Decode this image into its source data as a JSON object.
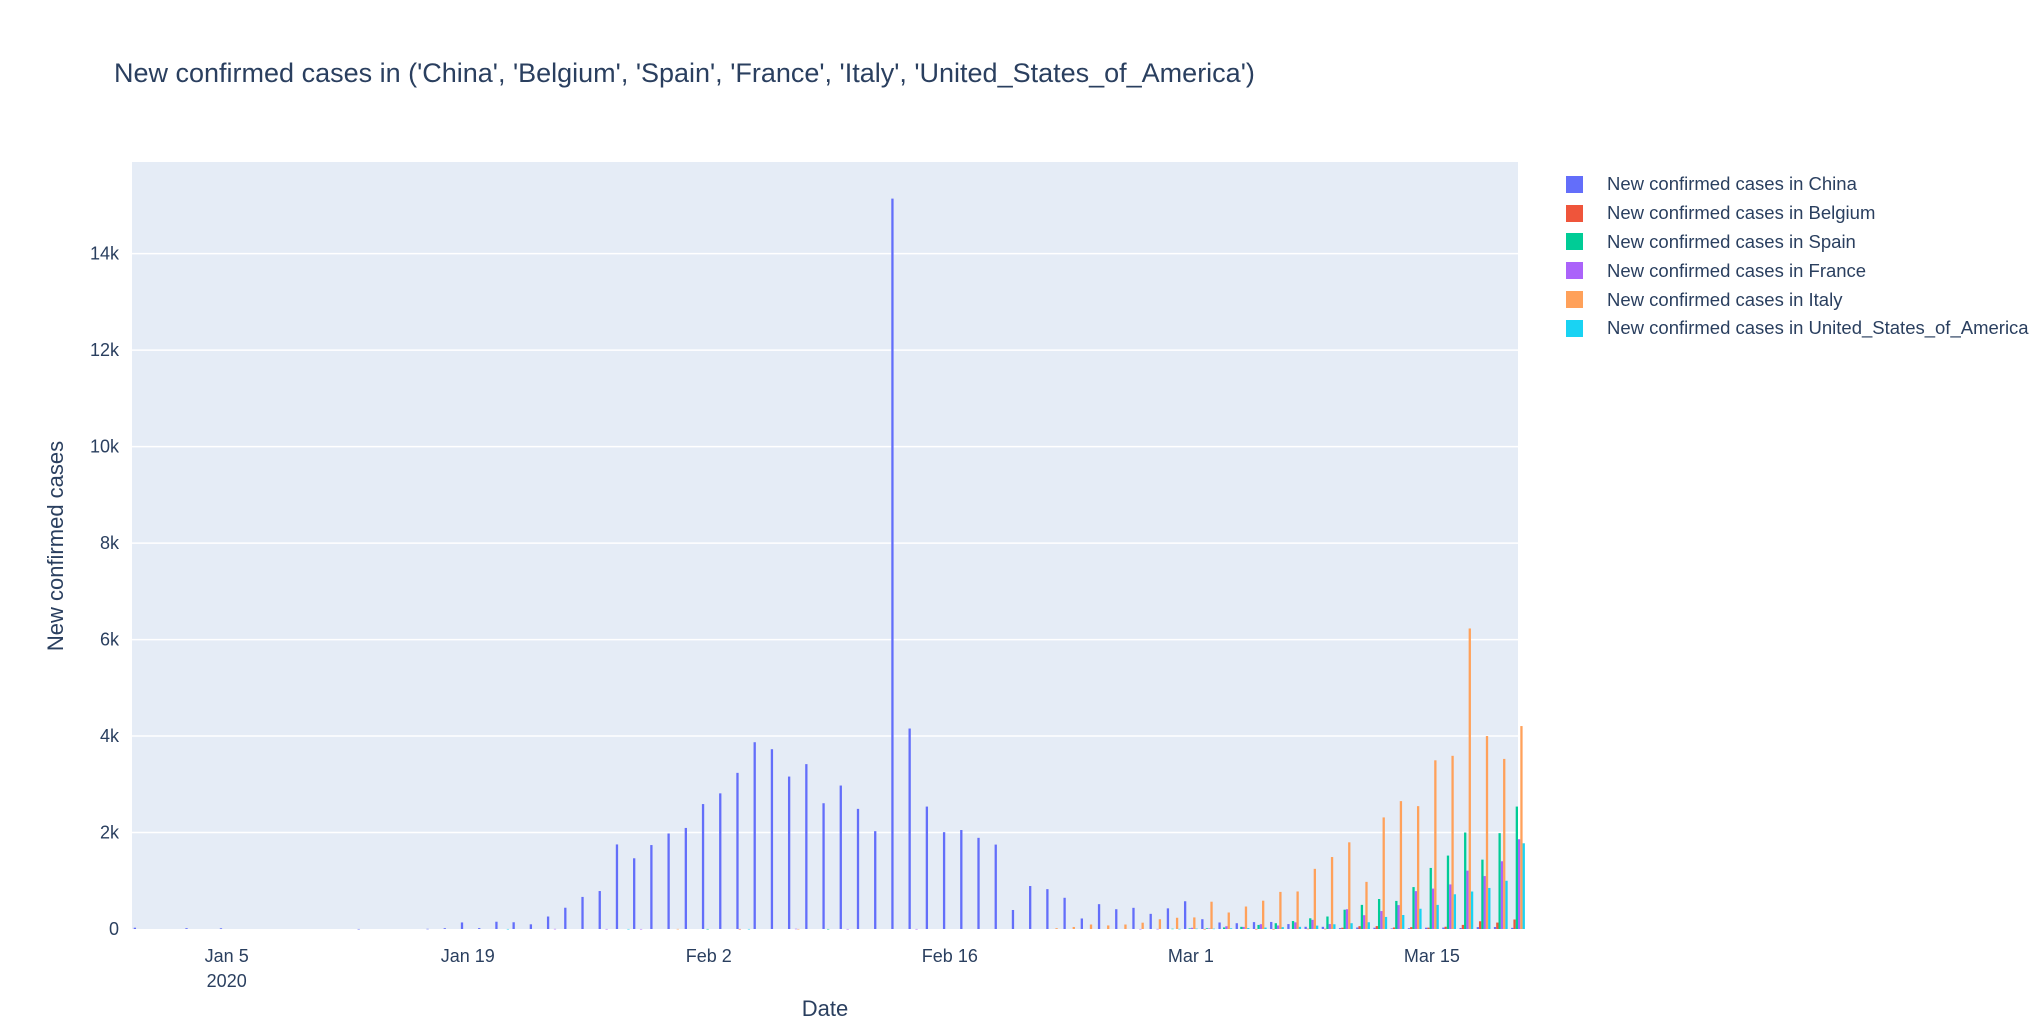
{
  "chart_data": {
    "type": "bar",
    "barmode": "group",
    "title": "New confirmed cases in ('China', 'Belgium', 'Spain', 'France', 'Italy', 'United_States_of_America')",
    "xlabel": "Date",
    "ylabel": "New confirmed cases",
    "x_start": "2019-12-31",
    "x_ticks": [
      {
        "date": "2020-01-05",
        "label": "Jan 5",
        "sublabel": "2020"
      },
      {
        "date": "2020-01-19",
        "label": "Jan 19"
      },
      {
        "date": "2020-02-02",
        "label": "Feb 2"
      },
      {
        "date": "2020-02-16",
        "label": "Feb 16"
      },
      {
        "date": "2020-03-01",
        "label": "Mar 1"
      },
      {
        "date": "2020-03-15",
        "label": "Mar 15"
      }
    ],
    "ylim": [
      0,
      15900
    ],
    "y_ticks": [
      {
        "value": 0,
        "label": "0"
      },
      {
        "value": 2000,
        "label": "2k"
      },
      {
        "value": 4000,
        "label": "4k"
      },
      {
        "value": 6000,
        "label": "6k"
      },
      {
        "value": 8000,
        "label": "8k"
      },
      {
        "value": 10000,
        "label": "10k"
      },
      {
        "value": 12000,
        "label": "12k"
      },
      {
        "value": 14000,
        "label": "14k"
      }
    ],
    "grid": true,
    "legend_position": "top-right",
    "series": [
      {
        "name": "New confirmed cases in China",
        "color": "#636efa",
        "values": [
          27,
          0,
          0,
          17,
          0,
          15,
          0,
          0,
          0,
          0,
          0,
          0,
          0,
          1,
          0,
          0,
          0,
          4,
          17,
          136,
          19,
          151,
          140,
          97,
          259,
          441,
          665,
          787,
          1753,
          1466,
          1740,
          1980,
          2095,
          2590,
          2812,
          3237,
          3872,
          3727,
          3160,
          3418,
          2607,
          2974,
          2490,
          2028,
          15141,
          4156,
          2538,
          2007,
          2052,
          1890,
          1750,
          394,
          891,
          826,
          647,
          218,
          515,
          410,
          439,
          314,
          428,
          575,
          203,
          135,
          120,
          143,
          146,
          102,
          46,
          45,
          20,
          31,
          26,
          11,
          18,
          27,
          29,
          21,
          39,
          41,
          24
        ]
      },
      {
        "name": "New confirmed cases in Belgium",
        "color": "#ef553b",
        "values": [
          0,
          0,
          0,
          0,
          0,
          0,
          0,
          0,
          0,
          0,
          0,
          0,
          0,
          0,
          0,
          0,
          0,
          0,
          0,
          0,
          0,
          0,
          0,
          0,
          0,
          0,
          0,
          0,
          0,
          0,
          0,
          0,
          0,
          0,
          0,
          1,
          0,
          0,
          0,
          0,
          0,
          0,
          0,
          0,
          0,
          0,
          0,
          0,
          0,
          0,
          0,
          0,
          0,
          0,
          0,
          0,
          0,
          0,
          0,
          0,
          0,
          0,
          1,
          0,
          0,
          1,
          1,
          0,
          6,
          5,
          27,
          59,
          60,
          31,
          39,
          28,
          47,
          85,
          160,
          133,
          197
        ]
      },
      {
        "name": "New confirmed cases in Spain",
        "color": "#00cc96",
        "values": [
          0,
          0,
          0,
          0,
          0,
          0,
          0,
          0,
          0,
          0,
          0,
          0,
          0,
          0,
          0,
          0,
          0,
          0,
          0,
          0,
          0,
          0,
          0,
          0,
          0,
          0,
          0,
          0,
          0,
          0,
          0,
          0,
          0,
          1,
          0,
          0,
          0,
          0,
          0,
          0,
          1,
          0,
          0,
          0,
          0,
          0,
          0,
          0,
          0,
          0,
          0,
          0,
          0,
          0,
          0,
          0,
          0,
          0,
          0,
          0,
          6,
          13,
          15,
          32,
          45,
          84,
          120,
          165,
          222,
          259,
          400,
          500,
          622,
          582,
          869,
          1266,
          1522,
          2000,
          1438,
          1987,
          2538
        ]
      },
      {
        "name": "New confirmed cases in France",
        "color": "#ab63fa",
        "values": [
          0,
          0,
          0,
          0,
          0,
          0,
          0,
          0,
          0,
          0,
          0,
          0,
          0,
          0,
          0,
          0,
          0,
          0,
          0,
          0,
          0,
          0,
          0,
          0,
          3,
          0,
          0,
          1,
          0,
          1,
          0,
          0,
          0,
          0,
          0,
          0,
          0,
          0,
          5,
          0,
          0,
          1,
          0,
          0,
          0,
          1,
          0,
          0,
          0,
          0,
          0,
          0,
          0,
          0,
          0,
          0,
          0,
          0,
          1,
          2,
          0,
          25,
          13,
          57,
          43,
          100,
          73,
          138,
          190,
          103,
          410,
          286,
          372,
          495,
          785,
          838,
          924,
          1210,
          1097,
          1404,
          1861
        ]
      },
      {
        "name": "New confirmed cases in Italy",
        "color": "#ffa15a",
        "values": [
          0,
          0,
          0,
          0,
          0,
          0,
          0,
          0,
          0,
          0,
          0,
          0,
          0,
          0,
          0,
          0,
          0,
          0,
          0,
          0,
          0,
          0,
          0,
          0,
          0,
          0,
          0,
          0,
          0,
          0,
          0,
          2,
          0,
          0,
          0,
          0,
          0,
          0,
          1,
          0,
          0,
          0,
          0,
          0,
          0,
          0,
          0,
          0,
          0,
          0,
          0,
          0,
          0,
          17,
          42,
          93,
          74,
          93,
          131,
          202,
          233,
          240,
          566,
          342,
          466,
          587,
          769,
          778,
          1247,
          1492,
          1797,
          977,
          2313,
          2651,
          2547,
          3497,
          3590,
          6230,
          4000,
          3526,
          4207
        ]
      },
      {
        "name": "New confirmed cases in United_States_of_America",
        "color": "#19d3f3",
        "values": [
          0,
          0,
          0,
          0,
          0,
          0,
          0,
          0,
          0,
          0,
          0,
          0,
          0,
          0,
          0,
          0,
          0,
          0,
          0,
          0,
          0,
          1,
          0,
          0,
          0,
          0,
          0,
          0,
          1,
          0,
          0,
          0,
          0,
          0,
          0,
          1,
          0,
          0,
          0,
          0,
          0,
          0,
          0,
          0,
          0,
          0,
          0,
          0,
          0,
          0,
          0,
          0,
          0,
          0,
          0,
          0,
          0,
          0,
          0,
          0,
          3,
          8,
          7,
          14,
          20,
          29,
          38,
          45,
          70,
          98,
          120,
          140,
          250,
          290,
          420,
          500,
          720,
          777,
          851,
          1000,
          1777
        ]
      }
    ]
  }
}
